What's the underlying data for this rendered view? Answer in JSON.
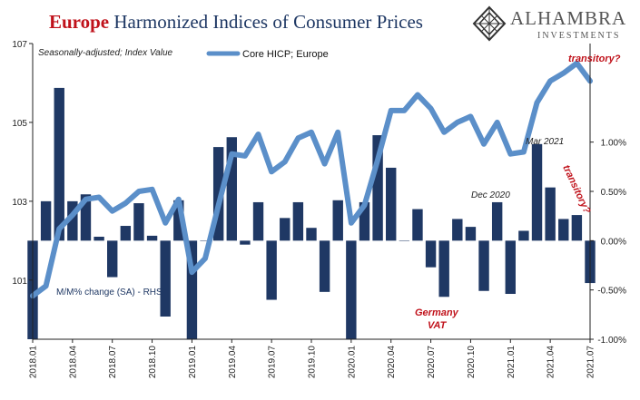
{
  "chart_data": {
    "type": "bar+line",
    "title_highlight": "Europe",
    "title_rest": "Harmonized Indices of Consumer Prices",
    "subtitle": "Seasonally-adjusted; Index Value",
    "logo": {
      "name": "ALHAMBRA",
      "sub": "INVESTMENTS"
    },
    "categories": [
      "2018.01",
      "2018.02",
      "2018.03",
      "2018.04",
      "2018.05",
      "2018.06",
      "2018.07",
      "2018.08",
      "2018.09",
      "2018.10",
      "2018.11",
      "2018.12",
      "2019.01",
      "2019.02",
      "2019.03",
      "2019.04",
      "2019.05",
      "2019.06",
      "2019.07",
      "2019.08",
      "2019.09",
      "2019.10",
      "2019.11",
      "2019.12",
      "2020.01",
      "2020.02",
      "2020.03",
      "2020.04",
      "2020.05",
      "2020.06",
      "2020.07",
      "2020.08",
      "2020.09",
      "2020.10",
      "2020.11",
      "2020.12",
      "2021.01",
      "2021.02",
      "2021.03",
      "2021.04",
      "2021.05",
      "2021.06",
      "2021.07"
    ],
    "x_tick_labels": [
      "2018.01",
      "2018.04",
      "2018.07",
      "2018.10",
      "2019.01",
      "2019.04",
      "2019.07",
      "2019.10",
      "2020.01",
      "2020.04",
      "2020.07",
      "2020.10",
      "2021.01",
      "2021.04",
      "2021.07"
    ],
    "series": [
      {
        "name": "Core HICP; Europe",
        "type": "line",
        "axis": "left",
        "color": "#5b8fc9",
        "values": [
          100.6,
          100.85,
          102.3,
          102.65,
          103.05,
          103.1,
          102.75,
          102.95,
          103.25,
          103.3,
          102.45,
          103.05,
          101.2,
          101.55,
          102.9,
          104.2,
          104.15,
          104.7,
          103.75,
          104.0,
          104.6,
          104.75,
          103.95,
          104.75,
          102.45,
          102.9,
          104.05,
          105.3,
          105.3,
          105.7,
          105.35,
          104.75,
          105.0,
          105.15,
          104.45,
          105.0,
          104.2,
          104.25,
          105.5,
          106.05,
          106.25,
          106.5,
          106.05
        ]
      },
      {
        "name": "M/M% change (SA) - RHS",
        "type": "bar",
        "axis": "right",
        "color": "#1f3864",
        "values": [
          -1.0,
          0.4,
          1.55,
          0.4,
          0.47,
          0.04,
          -0.37,
          0.15,
          0.38,
          0.05,
          -0.77,
          0.41,
          -1.0,
          0.0,
          0.95,
          1.05,
          -0.04,
          0.39,
          -0.6,
          0.23,
          0.39,
          0.13,
          -0.52,
          0.41,
          -1.0,
          0.39,
          1.07,
          0.74,
          0.0,
          0.32,
          -0.27,
          -0.57,
          0.22,
          0.14,
          -0.51,
          0.39,
          -0.54,
          0.1,
          0.98,
          0.54,
          0.22,
          0.26,
          -0.43
        ]
      }
    ],
    "left_axis": {
      "ylim": [
        99.5,
        107.0
      ],
      "ticks": [
        101,
        103,
        105,
        107
      ],
      "tick_labels": [
        "101",
        "103",
        "105",
        "107"
      ]
    },
    "right_axis": {
      "ylim": [
        -1.0,
        2.0
      ],
      "ticks": [
        -1.0,
        -0.5,
        0.0,
        0.5,
        1.0
      ],
      "tick_labels": [
        "-1.00%",
        "-0.50%",
        "0.00%",
        "0.50%",
        "1.00%"
      ]
    },
    "legend": {
      "position": "top-center"
    },
    "annotations": {
      "mm_label": "M/M% change (SA) - RHS",
      "germany_line1": "Germany",
      "germany_line2": "VAT",
      "dec_2020": "Dec 2020",
      "mar_2021": "Mar 2021",
      "transitory_top": "transitory?",
      "transitory_mid": "transitory?"
    }
  }
}
